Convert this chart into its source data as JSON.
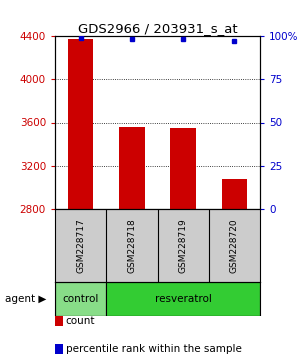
{
  "title": "GDS2966 / 203931_s_at",
  "samples": [
    "GSM228717",
    "GSM228718",
    "GSM228719",
    "GSM228720"
  ],
  "counts": [
    4370,
    3560,
    3550,
    3080
  ],
  "percentile_ranks": [
    99,
    98,
    98,
    97
  ],
  "ylim_left": [
    2800,
    4400
  ],
  "yticks_left": [
    2800,
    3200,
    3600,
    4000,
    4400
  ],
  "ylim_right": [
    0,
    100
  ],
  "yticks_right": [
    0,
    25,
    50,
    75,
    100
  ],
  "yticklabels_right": [
    "0",
    "25",
    "50",
    "75",
    "100%"
  ],
  "bar_color": "#cc0000",
  "dot_color": "#0000cc",
  "bar_width": 0.5,
  "groups": [
    {
      "label": "control",
      "samples": [
        "GSM228717"
      ],
      "color": "#88dd88"
    },
    {
      "label": "resveratrol",
      "samples": [
        "GSM228718",
        "GSM228719",
        "GSM228720"
      ],
      "color": "#33cc33"
    }
  ],
  "agent_label": "agent",
  "legend_count_label": "count",
  "legend_pct_label": "percentile rank within the sample",
  "background_color": "#ffffff",
  "plot_bg_color": "#ffffff",
  "sample_box_color": "#cccccc",
  "grid_color": "#000000",
  "left_tick_color": "#cc0000",
  "right_tick_color": "#0000cc",
  "title_fontsize": 9.5
}
